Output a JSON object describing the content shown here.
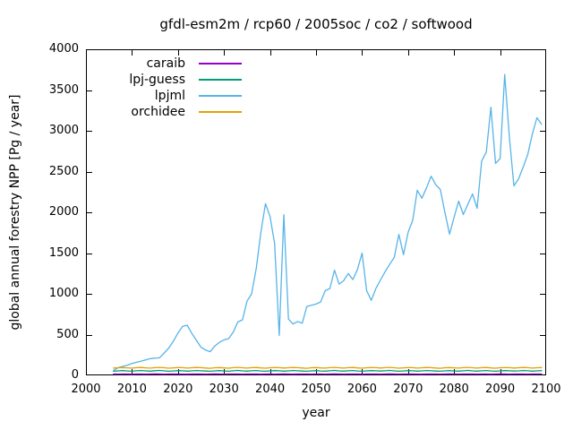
{
  "window": {
    "background": "#ffffff",
    "text_color": "#000000"
  },
  "chart_data": {
    "type": "line",
    "title": "gfdl-esm2m / rcp60 / 2005soc / co2 / softwood",
    "xlabel": "year",
    "ylabel": "global annual forestry NPP [Pg / year]",
    "xlim": [
      2000,
      2100
    ],
    "ylim": [
      0,
      4000
    ],
    "xticks": [
      2000,
      2010,
      2020,
      2030,
      2040,
      2050,
      2060,
      2070,
      2080,
      2090,
      2100
    ],
    "yticks": [
      0,
      500,
      1000,
      1500,
      2000,
      2500,
      3000,
      3500,
      4000
    ],
    "grid": false,
    "legend_position": "inside top-left",
    "x_start": 2006,
    "x_step": 1,
    "series": [
      {
        "name": "caraib",
        "color": "#9400D3",
        "values": [
          16,
          15,
          17,
          16,
          14,
          16,
          17,
          15,
          16,
          18,
          16,
          15,
          16,
          17,
          16,
          15,
          14,
          16,
          17,
          16,
          15,
          16,
          18,
          16,
          15,
          16,
          17,
          16,
          15,
          16,
          17,
          16,
          14,
          16,
          17,
          15,
          16,
          18,
          16,
          15,
          16,
          17,
          16,
          15,
          16,
          17,
          15,
          16,
          18,
          16,
          15,
          16,
          17,
          16,
          14,
          16,
          17,
          16,
          15,
          16,
          18,
          16,
          15,
          16,
          17,
          16,
          15,
          14,
          16,
          17,
          16,
          15,
          16,
          18,
          16,
          15,
          16,
          17,
          16,
          15,
          16,
          17,
          14,
          16,
          18,
          16,
          15,
          16,
          17,
          16,
          15,
          16,
          17,
          16
        ]
      },
      {
        "name": "lpj-guess",
        "color": "#009E73",
        "values": [
          52,
          55,
          58,
          54,
          51,
          56,
          59,
          55,
          52,
          57,
          60,
          55,
          51,
          54,
          58,
          56,
          52,
          55,
          59,
          56,
          53,
          50,
          55,
          58,
          54,
          51,
          56,
          60,
          55,
          52,
          56,
          59,
          54,
          51,
          55,
          58,
          56,
          52,
          55,
          59,
          56,
          53,
          50,
          55,
          58,
          54,
          52,
          56,
          60,
          55,
          52,
          56,
          59,
          54,
          51,
          55,
          58,
          56,
          53,
          56,
          60,
          55,
          51,
          54,
          58,
          56,
          52,
          55,
          59,
          56,
          53,
          50,
          55,
          58,
          54,
          52,
          56,
          60,
          55,
          52,
          56,
          59,
          54,
          51,
          55,
          58,
          56,
          53,
          55,
          59,
          56,
          52,
          55,
          58
        ]
      },
      {
        "name": "lpjml",
        "color": "#56B4E9",
        "values": [
          60,
          95,
          110,
          125,
          145,
          160,
          175,
          190,
          205,
          210,
          215,
          275,
          335,
          420,
          520,
          600,
          615,
          515,
          430,
          345,
          310,
          290,
          360,
          405,
          435,
          450,
          530,
          655,
          680,
          910,
          1000,
          1310,
          1750,
          2105,
          1950,
          1620,
          490,
          1970,
          690,
          630,
          660,
          640,
          845,
          860,
          875,
          900,
          1040,
          1065,
          1290,
          1120,
          1160,
          1250,
          1175,
          1300,
          1500,
          1040,
          920,
          1065,
          1170,
          1270,
          1360,
          1450,
          1730,
          1480,
          1754,
          1900,
          2270,
          2172,
          2300,
          2443,
          2340,
          2280,
          2000,
          1732,
          1940,
          2137,
          1973,
          2100,
          2225,
          2050,
          2630,
          2740,
          3290,
          2600,
          2660,
          3690,
          2926,
          2324,
          2411,
          2554,
          2707,
          2960,
          3160,
          3080
        ]
      },
      {
        "name": "orchidee",
        "color": "#E69F00",
        "values": [
          90,
          93,
          96,
          92,
          88,
          94,
          97,
          92,
          89,
          95,
          98,
          93,
          88,
          92,
          96,
          94,
          89,
          93,
          97,
          94,
          90,
          87,
          93,
          96,
          91,
          88,
          94,
          98,
          93,
          89,
          94,
          97,
          91,
          88,
          93,
          96,
          94,
          90,
          93,
          97,
          94,
          90,
          87,
          93,
          96,
          91,
          89,
          94,
          98,
          93,
          89,
          94,
          97,
          91,
          88,
          93,
          96,
          94,
          90,
          94,
          98,
          93,
          88,
          92,
          96,
          94,
          89,
          93,
          97,
          94,
          90,
          87,
          93,
          96,
          92,
          89,
          94,
          98,
          93,
          89,
          94,
          97,
          91,
          88,
          93,
          96,
          94,
          90,
          93,
          97,
          94,
          89,
          93,
          96
        ]
      }
    ]
  }
}
